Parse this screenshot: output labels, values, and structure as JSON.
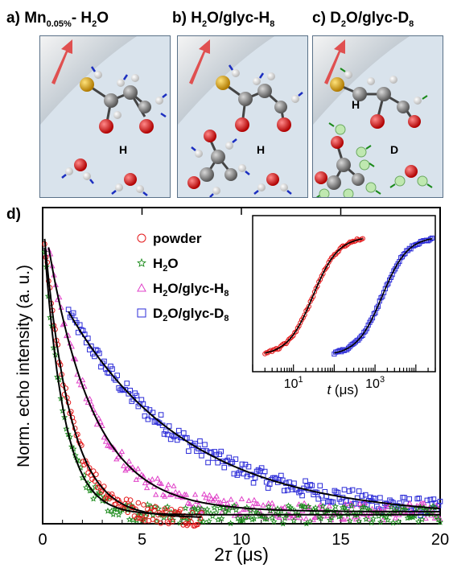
{
  "panels": [
    {
      "letter": "a)",
      "title_main": "Mn",
      "title_sub": "0.05%",
      "title_rest": "- H",
      "title_sub2": "2",
      "title_end": "O",
      "atom_label": "H"
    },
    {
      "letter": "b)",
      "title_main": "H",
      "title_sub": "2",
      "title_rest": "O/glyc-H",
      "title_sub2": "8",
      "title_end": "",
      "atom_label": "H"
    },
    {
      "letter": "c)",
      "title_main": "D",
      "title_sub": "2",
      "title_rest": "O/glyc-D",
      "title_sub2": "8",
      "title_end": "",
      "atom_label_1": "H",
      "atom_label_2": "D"
    }
  ],
  "panel_d_label": "d)",
  "colors": {
    "powder": "#e41a1c",
    "h2o": "#1a8a1a",
    "h2o_glyc": "#e040c8",
    "d2o_glyc": "#2b2bd8",
    "fit": "#000000",
    "box_bg": "#d9e3ec",
    "box_border": "#5a7188",
    "arrow": "#e05050",
    "carbon": "#7a7a7a",
    "oxygen": "#e01818",
    "hydrogen": "#f2f2f2",
    "sulfur": "#d8a520",
    "deuterium": "#bfe8b0",
    "spin_arrow": "#1c2fc0"
  },
  "chart_data": {
    "type": "scatter",
    "xlabel_main": "2",
    "xlabel_tau": "τ",
    "xlabel_unit": " (μs)",
    "ylabel": "Norm. echo intensity (a. u.)",
    "xlim": [
      0,
      20
    ],
    "ylim": [
      0,
      1.05
    ],
    "x_ticks": [
      0,
      5,
      10,
      15,
      20
    ],
    "grid": false,
    "legend_position": "top-left",
    "series": [
      {
        "name": "powder",
        "key": "powder",
        "marker": "circle",
        "start": 0.1,
        "end": 8.0,
        "amplitude": 1.0,
        "decay_const_us": 1.3,
        "offset": 0.02,
        "count": 120
      },
      {
        "name": "H2O",
        "key": "h2o",
        "marker": "star",
        "start": 0.1,
        "end": 20.0,
        "amplitude": 0.98,
        "decay_const_us": 1.0,
        "offset": 0.03,
        "count": 220
      },
      {
        "name": "H2O/glyc-H8",
        "key": "h2o_glyc",
        "marker": "triangle",
        "start": 0.3,
        "end": 20.0,
        "amplitude": 1.0,
        "decay_const_us": 2.3,
        "offset": 0.04,
        "count": 220
      },
      {
        "name": "D2O/glyc-D8",
        "key": "d2o_glyc",
        "marker": "square",
        "start": 1.3,
        "end": 20.0,
        "amplitude": 0.85,
        "decay_const_us": 6.0,
        "offset": 0.02,
        "count": 230
      }
    ],
    "legend": [
      {
        "key": "powder",
        "marker": "circle",
        "label_main": "powder",
        "label_sub": "",
        "label_rest": "",
        "label_sub2": ""
      },
      {
        "key": "h2o",
        "marker": "star",
        "label_main": "H",
        "label_sub": "2",
        "label_rest": "O",
        "label_sub2": ""
      },
      {
        "key": "h2o_glyc",
        "marker": "triangle",
        "label_main": "H",
        "label_sub": "2",
        "label_rest": "O/glyc-H",
        "label_sub2": "8"
      },
      {
        "key": "d2o_glyc",
        "marker": "square",
        "label_main": "D",
        "label_sub": "2",
        "label_rest": "O/glyc-D",
        "label_sub2": "8"
      }
    ],
    "inset": {
      "type": "line",
      "x_scale": "log",
      "xlim": [
        1,
        30000
      ],
      "x_ticks": [
        10,
        1000
      ],
      "x_tick_label_base": "10",
      "x_tick_label_exp": [
        "1",
        "3"
      ],
      "xlabel_var": "t",
      "xlabel_unit": " (μs)",
      "series": [
        {
          "key": "powder",
          "marker": "circle",
          "start": 2,
          "end": 500,
          "t_half": 30,
          "y_low": 0.0,
          "y_high": 1.0
        },
        {
          "key": "d2o_glyc",
          "marker": "square",
          "start": 100,
          "end": 25000,
          "t_half": 1500,
          "y_low": 0.0,
          "y_high": 1.0
        }
      ]
    }
  }
}
